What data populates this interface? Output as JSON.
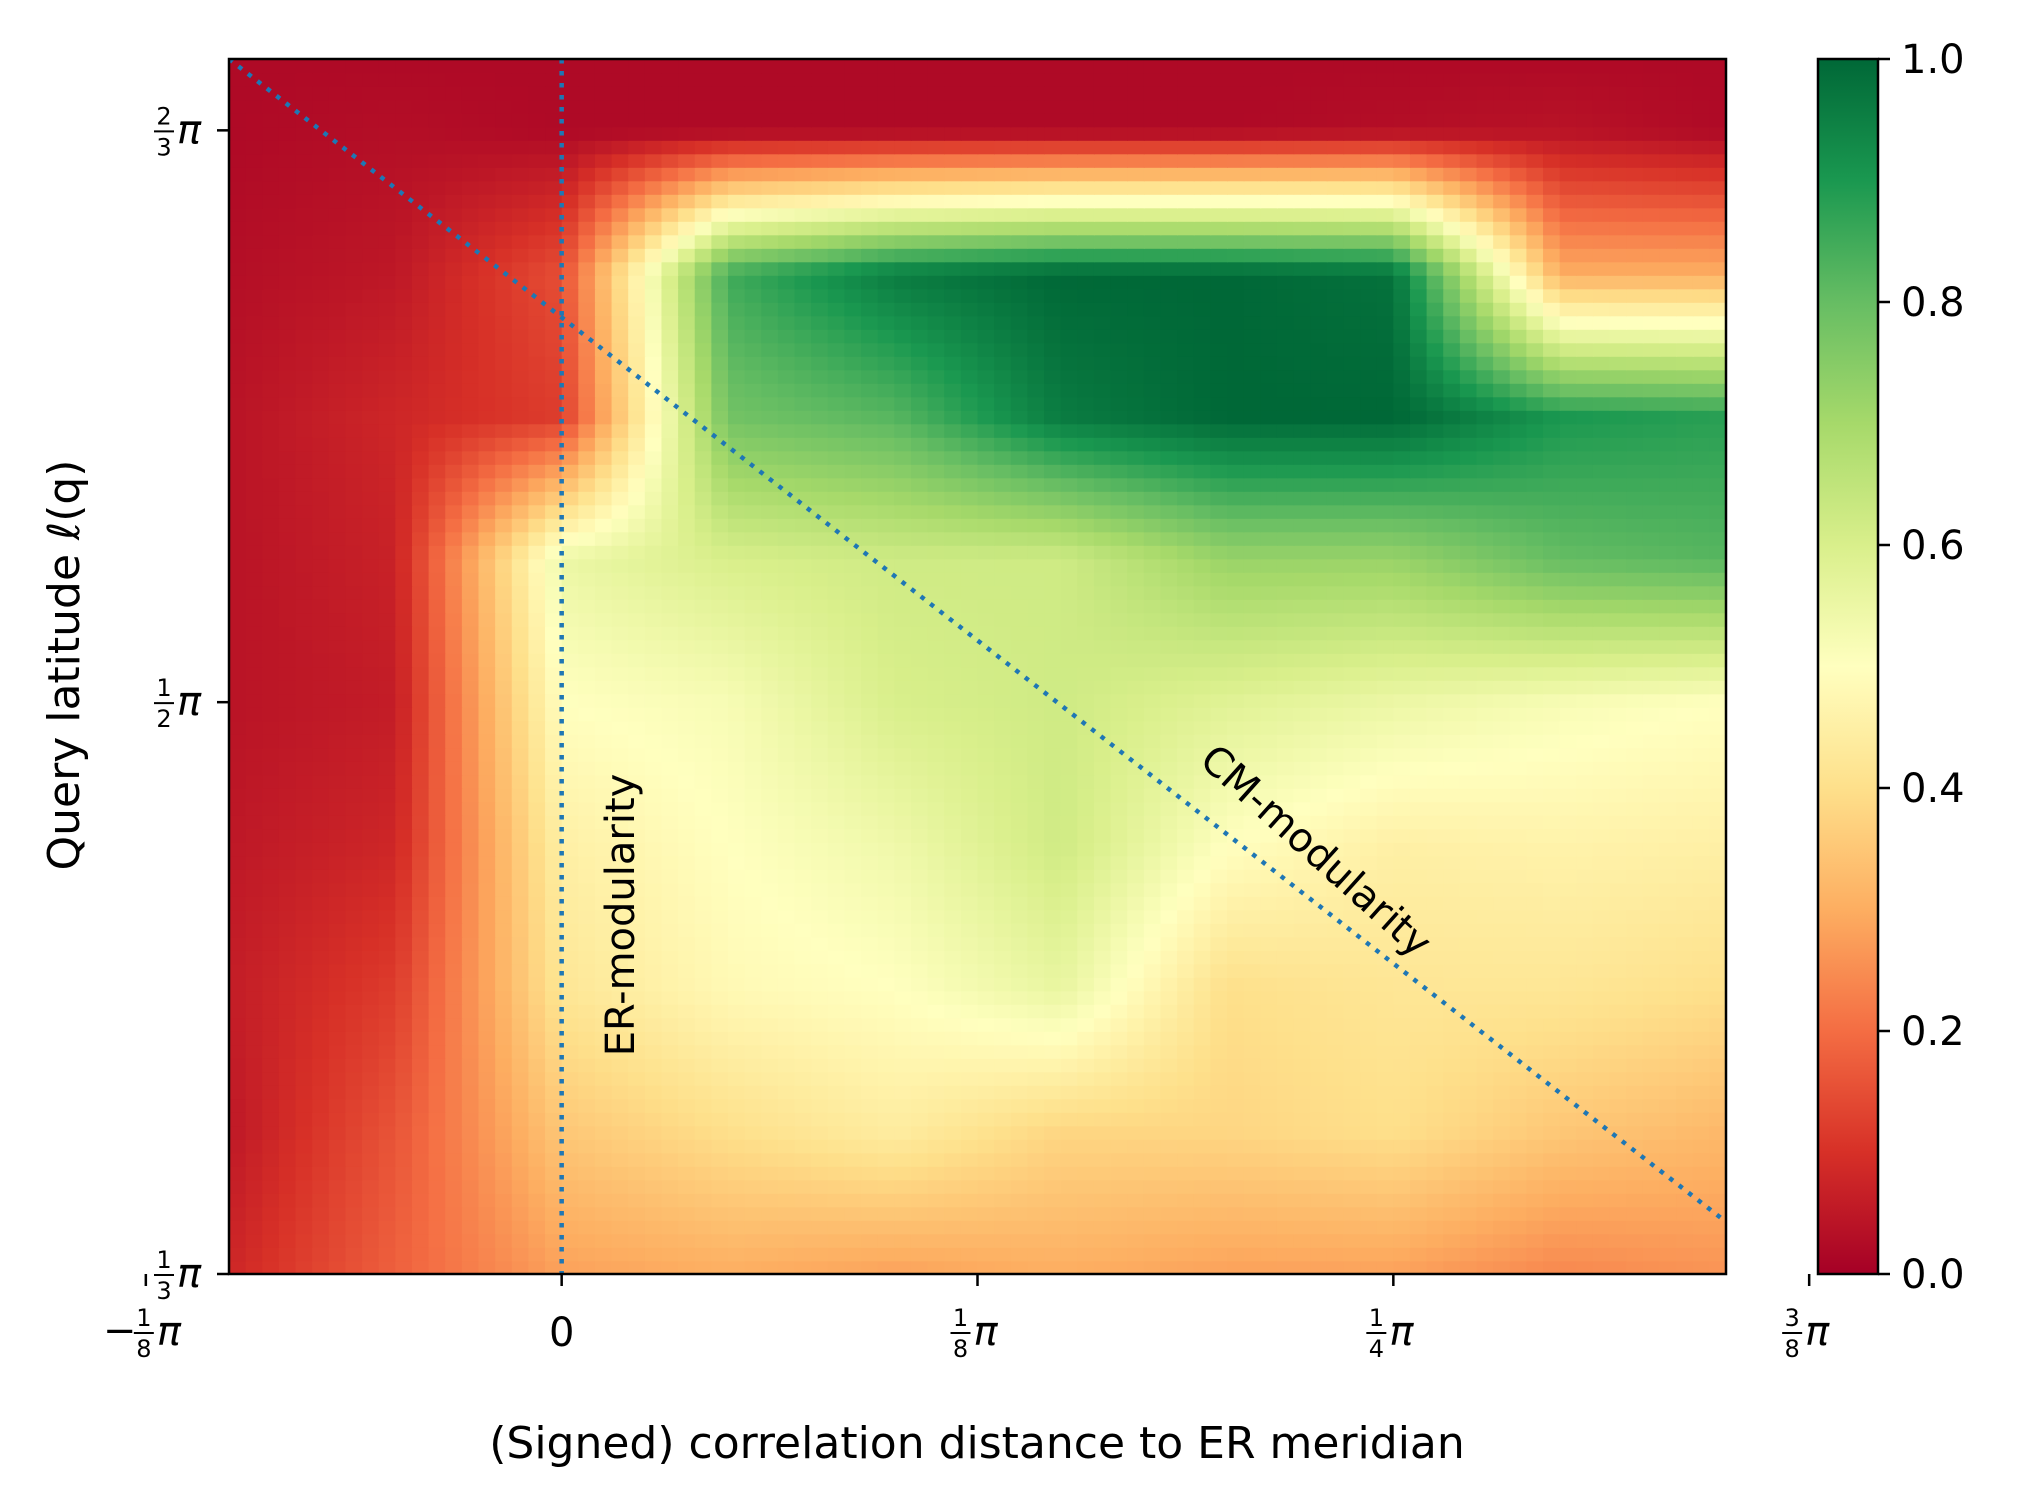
{
  "chart_data": {
    "type": "heatmap",
    "title": "",
    "xlabel": "(Signed) correlation distance to ER meridian",
    "ylabel": "Query latitude ℓ(q)",
    "x_unit": "π",
    "y_unit": "π",
    "xlim": [
      -0.1,
      0.35
    ],
    "ylim": [
      0.3333,
      0.6875
    ],
    "x_ticks": [
      {
        "value": -0.125,
        "num": "1",
        "den": "8",
        "sign": "−",
        "suffix": "π"
      },
      {
        "value": 0,
        "text": "0"
      },
      {
        "value": 0.125,
        "num": "1",
        "den": "8",
        "sign": "",
        "suffix": "π"
      },
      {
        "value": 0.25,
        "num": "1",
        "den": "4",
        "sign": "",
        "suffix": "π"
      },
      {
        "value": 0.375,
        "num": "3",
        "den": "8",
        "sign": "",
        "suffix": "π"
      }
    ],
    "y_ticks": [
      {
        "value": 0.3333,
        "num": "1",
        "den": "3",
        "suffix": "π"
      },
      {
        "value": 0.5,
        "num": "1",
        "den": "2",
        "suffix": "π"
      },
      {
        "value": 0.6667,
        "num": "2",
        "den": "3",
        "suffix": "π"
      }
    ],
    "colorbar": {
      "colormap": "RdYlGn",
      "range": [
        0.0,
        1.0
      ],
      "ticks": [
        "0.0",
        "0.2",
        "0.4",
        "0.6",
        "0.8",
        "1.0"
      ]
    },
    "colormap_stops": [
      "#a50026",
      "#d73027",
      "#f46d43",
      "#fdae61",
      "#fee08b",
      "#ffffbf",
      "#d9ef8b",
      "#a6d96a",
      "#66bd63",
      "#1a9850",
      "#006837"
    ],
    "grid": false,
    "annotations": [
      {
        "text": "ER-modularity",
        "style": "vertical dotted line",
        "x": 0
      },
      {
        "text": "CM-modularity",
        "style": "diagonal dotted line",
        "x_start": -0.1,
        "y_start": 0.6875,
        "x_end": 0.35,
        "y_end": 0.3485
      }
    ],
    "line_color": "#1f77b4",
    "cells_x": [
      -0.1,
      -0.05,
      0,
      0.05,
      0.1,
      0.15,
      0.2,
      0.25,
      0.3,
      0.35
    ],
    "cells_y": [
      0.3333,
      0.375,
      0.4167,
      0.4583,
      0.5,
      0.5417,
      0.5833,
      0.625,
      0.6667,
      0.6875
    ],
    "values": [
      [
        0.08,
        0.18,
        0.28,
        0.3,
        0.28,
        0.3,
        0.28,
        0.28,
        0.24,
        0.26
      ],
      [
        0.05,
        0.16,
        0.35,
        0.4,
        0.44,
        0.38,
        0.38,
        0.4,
        0.35,
        0.32
      ],
      [
        0.06,
        0.12,
        0.42,
        0.48,
        0.5,
        0.56,
        0.4,
        0.42,
        0.42,
        0.4
      ],
      [
        0.05,
        0.08,
        0.45,
        0.5,
        0.54,
        0.62,
        0.5,
        0.45,
        0.46,
        0.45
      ],
      [
        0.04,
        0.06,
        0.5,
        0.52,
        0.6,
        0.62,
        0.58,
        0.55,
        0.52,
        0.5
      ],
      [
        0.04,
        0.07,
        0.55,
        0.6,
        0.62,
        0.62,
        0.72,
        0.72,
        0.8,
        0.82
      ],
      [
        0.04,
        0.08,
        0.12,
        0.78,
        0.82,
        0.96,
        1.0,
        1.0,
        0.9,
        0.88
      ],
      [
        0.03,
        0.05,
        0.15,
        0.85,
        0.96,
        1.0,
        1.0,
        0.98,
        0.3,
        0.3
      ],
      [
        0.02,
        0.03,
        0.02,
        0.02,
        0.02,
        0.02,
        0.02,
        0.03,
        0.04,
        0.02
      ],
      [
        0.02,
        0.02,
        0.02,
        0.02,
        0.02,
        0.02,
        0.02,
        0.02,
        0.02,
        0.02
      ]
    ]
  }
}
